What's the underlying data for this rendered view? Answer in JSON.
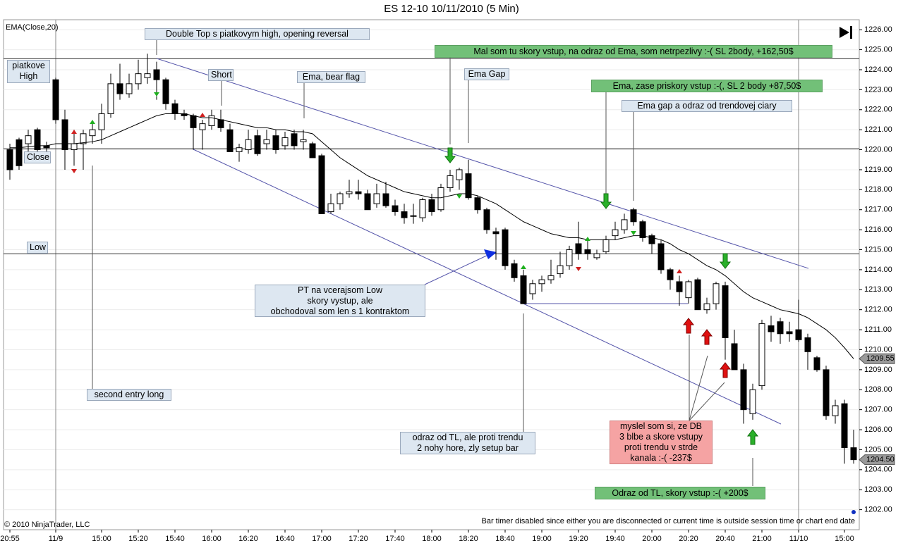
{
  "chart_data": {
    "type": "candlestick",
    "title": "ES 12-10  10/11/2010 (5 Min)",
    "indicator_label": "EMA(Close,20)",
    "copyright": "© 2010 NinjaTrader, LLC",
    "status_text": "Bar timer disabled since either you are disconnected or current time is outside session time or chart end date",
    "categories": [
      "20:55",
      null,
      null,
      null,
      null,
      "11/9",
      null,
      null,
      null,
      null,
      "15:00",
      null,
      null,
      null,
      "15:20",
      null,
      null,
      null,
      "15:40",
      null,
      null,
      null,
      "16:00",
      null,
      null,
      null,
      "16:20",
      null,
      null,
      null,
      "16:40",
      null,
      null,
      null,
      "17:00",
      null,
      null,
      null,
      "17:20",
      null,
      null,
      null,
      "17:40",
      null,
      null,
      null,
      "18:00",
      null,
      null,
      null,
      "18:20",
      null,
      null,
      null,
      "18:40",
      null,
      null,
      null,
      "19:00",
      null,
      null,
      null,
      "19:20",
      null,
      null,
      null,
      "19:40",
      null,
      null,
      null,
      "20:00",
      null,
      null,
      null,
      "20:20",
      null,
      null,
      null,
      "20:40",
      null,
      null,
      null,
      "21:00",
      null,
      null,
      null,
      "11/10",
      null,
      null,
      null,
      null,
      "15:00",
      null
    ],
    "open": [
      1220.0,
      1220.5,
      1220.3,
      1221.0,
      1220.2,
      1223.5,
      1221.5,
      1220.0,
      1220.3,
      1220.7,
      1221.0,
      1221.8,
      1223.3,
      1222.8,
      1223.3,
      1223.6,
      1224.0,
      1223.5,
      1222.3,
      1221.8,
      1221.7,
      1221.0,
      1221.2,
      1221.5,
      1221.0,
      1219.9,
      1220.0,
      1220.7,
      1220.3,
      1220.7,
      1220.2,
      1220.8,
      1220.4,
      1220.3,
      1219.7,
      1216.9,
      1217.3,
      1217.8,
      1217.9,
      1217.8,
      1217.3,
      1217.8,
      1217.2,
      1216.9,
      1216.7,
      1216.6,
      1217.5,
      1217.0,
      1218.1,
      1218.5,
      1218.8,
      1217.6,
      1217.0,
      1215.9,
      1216.0,
      1214.3,
      1213.7,
      1212.8,
      1213.3,
      1213.5,
      1213.8,
      1214.2,
      1215.3,
      1215.0,
      1214.6,
      1214.9,
      1215.7,
      1216.0,
      1217.0,
      1216.4,
      1215.7,
      1215.3,
      1214.0,
      1213.4,
      1212.6,
      1213.5,
      1212.0,
      1212.3,
      1213.2,
      1210.3,
      1209.0,
      1206.8,
      1208.2,
      1211.2,
      1211.4,
      1210.9,
      1211.0,
      1210.6,
      1209.6,
      1209.0,
      1206.7,
      1207.3,
      1205.1
    ],
    "high": [
      1220.3,
      1220.6,
      1221.0,
      1221.1,
      1220.4,
      1223.6,
      1222.0,
      1221.0,
      1221.0,
      1221.3,
      1222.3,
      1223.8,
      1224.3,
      1223.8,
      1224.5,
      1224.8,
      1224.4,
      1223.6,
      1222.5,
      1222.0,
      1221.8,
      1221.5,
      1222.0,
      1222.0,
      1221.3,
      1220.3,
      1221.0,
      1221.0,
      1221.0,
      1221.0,
      1220.9,
      1221.0,
      1221.0,
      1220.4,
      1219.8,
      1217.8,
      1217.9,
      1218.5,
      1218.5,
      1218.0,
      1218.3,
      1218.4,
      1217.5,
      1217.3,
      1217.3,
      1217.6,
      1217.8,
      1218.3,
      1219.0,
      1219.1,
      1219.5,
      1217.7,
      1217.1,
      1216.1,
      1216.1,
      1214.5,
      1214.0,
      1213.5,
      1213.7,
      1214.5,
      1214.9,
      1215.2,
      1216.4,
      1215.5,
      1215.0,
      1215.7,
      1216.4,
      1216.8,
      1217.1,
      1216.5,
      1215.8,
      1215.5,
      1214.1,
      1213.7,
      1213.5,
      1213.6,
      1212.6,
      1213.4,
      1213.4,
      1211.0,
      1209.3,
      1208.3,
      1211.5,
      1211.7,
      1211.6,
      1211.4,
      1212.5,
      1210.8,
      1209.7,
      1209.2,
      1207.5,
      1207.5,
      1206.0
    ],
    "low": [
      1218.5,
      1219.0,
      1219.8,
      1219.7,
      1219.8,
      1221.3,
      1219.0,
      1219.2,
      1219.0,
      1220.3,
      1220.3,
      1221.6,
      1222.5,
      1222.6,
      1223.0,
      1223.3,
      1222.5,
      1222.0,
      1221.5,
      1221.5,
      1220.0,
      1220.0,
      1221.0,
      1220.9,
      1219.9,
      1219.4,
      1219.8,
      1219.7,
      1220.0,
      1219.8,
      1220.0,
      1220.0,
      1220.0,
      1219.6,
      1216.8,
      1216.8,
      1217.0,
      1217.6,
      1217.5,
      1217.0,
      1217.1,
      1217.1,
      1216.7,
      1216.3,
      1216.3,
      1216.4,
      1216.7,
      1216.9,
      1217.9,
      1218.0,
      1217.5,
      1216.8,
      1215.8,
      1214.5,
      1214.0,
      1213.4,
      1212.3,
      1212.5,
      1212.9,
      1213.3,
      1213.6,
      1214.0,
      1214.5,
      1214.5,
      1214.5,
      1214.8,
      1215.5,
      1215.8,
      1216.2,
      1215.4,
      1214.8,
      1213.8,
      1213.0,
      1212.2,
      1212.3,
      1212.0,
      1211.8,
      1212.0,
      1209.5,
      1209.0,
      1206.3,
      1206.5,
      1208.0,
      1210.4,
      1210.3,
      1210.4,
      1210.4,
      1209.0,
      1208.9,
      1206.5,
      1206.3,
      1204.3,
      1204.3
    ],
    "close": [
      1219.0,
      1219.2,
      1220.7,
      1220.0,
      1220.1,
      1221.5,
      1220.0,
      1220.3,
      1220.8,
      1221.0,
      1221.8,
      1223.3,
      1222.8,
      1223.3,
      1223.8,
      1223.8,
      1223.5,
      1222.3,
      1221.8,
      1221.7,
      1221.1,
      1221.3,
      1221.7,
      1221.1,
      1219.9,
      1220.1,
      1220.5,
      1219.8,
      1220.5,
      1220.0,
      1220.6,
      1220.2,
      1220.5,
      1219.6,
      1216.8,
      1217.3,
      1217.8,
      1217.9,
      1217.8,
      1217.0,
      1217.8,
      1217.2,
      1216.9,
      1216.6,
      1216.7,
      1217.5,
      1216.9,
      1218.1,
      1218.7,
      1219.0,
      1217.6,
      1217.0,
      1216.0,
      1215.8,
      1214.2,
      1213.6,
      1212.3,
      1213.3,
      1213.5,
      1213.7,
      1214.2,
      1215.0,
      1214.8,
      1214.8,
      1214.8,
      1215.5,
      1216.0,
      1216.5,
      1216.4,
      1215.6,
      1215.3,
      1214.0,
      1213.5,
      1212.9,
      1213.4,
      1212.0,
      1212.3,
      1213.3,
      1210.6,
      1209.0,
      1207.0,
      1208.0,
      1211.3,
      1210.9,
      1210.8,
      1210.8,
      1210.5,
      1209.9,
      1209.0,
      1206.7,
      1207.2,
      1205.1,
      1204.5
    ],
    "ema": {
      "name": "EMA(Close,20)",
      "color": "#000000",
      "values": [
        1220.1,
        1220.1,
        1220.15,
        1220.2,
        1220.2,
        1220.3,
        1220.3,
        1220.3,
        1220.35,
        1220.4,
        1220.5,
        1220.7,
        1220.9,
        1221.1,
        1221.3,
        1221.5,
        1221.7,
        1221.8,
        1221.8,
        1221.8,
        1221.7,
        1221.6,
        1221.6,
        1221.5,
        1221.4,
        1221.3,
        1221.2,
        1221.1,
        1221.1,
        1221.0,
        1221.0,
        1220.9,
        1220.9,
        1220.8,
        1220.4,
        1220.0,
        1219.6,
        1219.3,
        1219.0,
        1218.7,
        1218.5,
        1218.3,
        1218.1,
        1217.9,
        1217.8,
        1217.7,
        1217.6,
        1217.6,
        1217.7,
        1217.8,
        1217.8,
        1217.7,
        1217.5,
        1217.3,
        1217.0,
        1216.7,
        1216.4,
        1216.2,
        1216.0,
        1215.8,
        1215.7,
        1215.6,
        1215.6,
        1215.5,
        1215.5,
        1215.5,
        1215.5,
        1215.6,
        1215.7,
        1215.7,
        1215.6,
        1215.5,
        1215.3,
        1215.0,
        1214.8,
        1214.5,
        1214.2,
        1214.0,
        1213.7,
        1213.3,
        1212.9,
        1212.6,
        1212.4,
        1212.2,
        1212.0,
        1211.9,
        1211.8,
        1211.6,
        1211.3,
        1211.0,
        1210.6,
        1210.1,
        1209.55
      ]
    },
    "up_color": "#ffffff",
    "down_color": "#000000",
    "levels": [
      1224.55,
      1220.05,
      1214.8
    ],
    "price_markers": [
      {
        "value": 1209.55,
        "label": "1209.55"
      },
      {
        "value": 1204.5,
        "label": "1204.50"
      }
    ],
    "ylim": [
      1201,
      1226.5
    ],
    "yticks": [
      {
        "value": 1202,
        "label": "1202.00"
      },
      {
        "value": 1203,
        "label": "1203.00"
      },
      {
        "value": 1204,
        "label": "1204.00"
      },
      {
        "value": 1205,
        "label": "1205.00"
      },
      {
        "value": 1206,
        "label": "1206.00"
      },
      {
        "value": 1207,
        "label": "1207.00"
      },
      {
        "value": 1208,
        "label": "1208.00"
      },
      {
        "value": 1209,
        "label": "1209.00"
      },
      {
        "value": 1210,
        "label": "1210.00"
      },
      {
        "value": 1211,
        "label": "1211.00"
      },
      {
        "value": 1212,
        "label": "1212.00"
      },
      {
        "value": 1213,
        "label": "1213.00"
      },
      {
        "value": 1214,
        "label": "1214.00"
      },
      {
        "value": 1215,
        "label": "1215.00"
      },
      {
        "value": 1216,
        "label": "1216.00"
      },
      {
        "value": 1217,
        "label": "1217.00"
      },
      {
        "value": 1218,
        "label": "1218.00"
      },
      {
        "value": 1219,
        "label": "1219.00"
      },
      {
        "value": 1220,
        "label": "1220.00"
      },
      {
        "value": 1221,
        "label": "1221.00"
      },
      {
        "value": 1222,
        "label": "1222.00"
      },
      {
        "value": 1223,
        "label": "1223.00"
      },
      {
        "value": 1224,
        "label": "1224.00"
      },
      {
        "value": 1225,
        "label": "1225.00"
      },
      {
        "value": 1226,
        "label": "1226.00"
      }
    ],
    "grid": true,
    "annotations": [
      "piatkove\nHigh",
      "Close",
      "Low",
      "Double Top s piatkovym high, opening reversal",
      "Short",
      "Ema, bear flag",
      "Ema Gap",
      "Mal som tu skory vstup, na odraz od Ema, som netrpezlivy :-(  SL 2body, +162,50$",
      "Ema, zase priskory vstup :-(, SL 2 body +87,50$",
      "Ema gap a odraz od trendovej ciary",
      "PT na vcerajsom Low\nskory vystup, ale\nobchodoval som len s 1 kontraktom",
      "second entry long",
      "odraz od TL, ale proti trendu\n2 nohy hore, zly setup bar",
      "myslel som si, ze DB\n3 blbe a skore vstupy\nproti trendu v strde\nkanala :-( -237$",
      "Odraz od TL, skory vstup :-(  +200$"
    ]
  }
}
